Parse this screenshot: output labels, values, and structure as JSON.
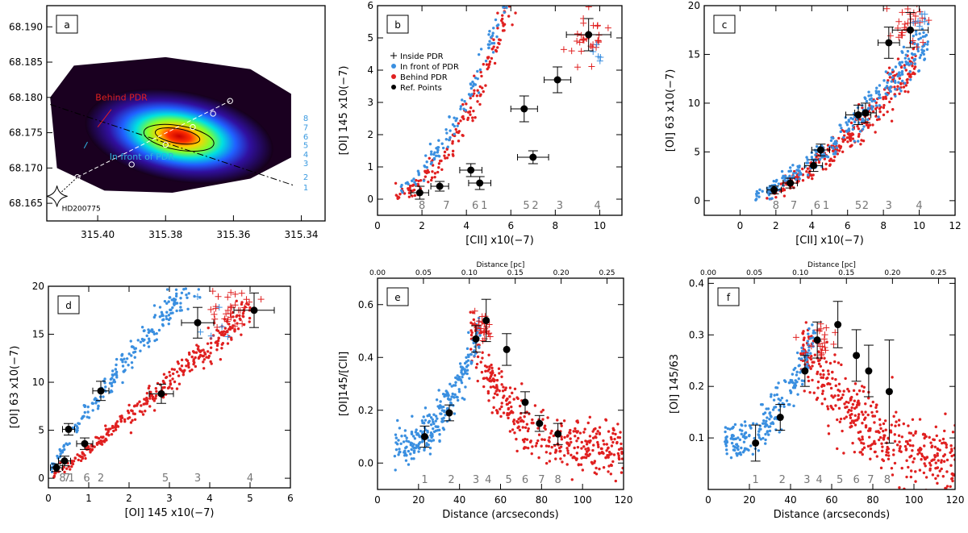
{
  "colors": {
    "infront": "#3a8fe0",
    "behind": "#e02020",
    "ref": "#000000",
    "inside_red": "#e02020",
    "inside_blue": "#3a8fe0",
    "numbers": "#777777",
    "map_numbers": "#3a9ae0"
  },
  "chart_data": [
    {
      "id": "a",
      "type": "heatmap",
      "panel_label": "a",
      "x_ticks": [
        "315.40",
        "315.38",
        "315.36",
        "315.34"
      ],
      "y_ticks": [
        "68.165",
        "68.170",
        "68.175",
        "68.180",
        "68.185",
        "68.190"
      ],
      "xlim": [
        315.415,
        315.333
      ],
      "ylim": [
        68.1625,
        68.193
      ],
      "star_label": "HD200775",
      "annotation_behind": "Behind PDR",
      "annotation_front": "In front of PDR",
      "cut_numbers": [
        "1",
        "2",
        "3",
        "4",
        "5",
        "6",
        "7",
        "8"
      ],
      "emission_peak": [
        315.376,
        68.1745
      ],
      "cut_points": [
        [
          315.406,
          68.1687
        ],
        [
          315.39,
          68.1705
        ],
        [
          315.38,
          68.1733
        ],
        [
          315.372,
          68.1758
        ],
        [
          315.366,
          68.1777
        ],
        [
          315.361,
          68.1795
        ]
      ]
    },
    {
      "id": "b",
      "type": "scatter",
      "panel_label": "b",
      "xlabel": "[CII] x10(−7)",
      "ylabel": "[OI] 145 x10(−7)",
      "xlim": [
        0,
        11
      ],
      "ylim": [
        -0.5,
        6
      ],
      "xticks": [
        0,
        2,
        4,
        6,
        8,
        10
      ],
      "yticks": [
        0,
        1,
        2,
        3,
        4,
        5,
        6
      ],
      "legend": {
        "placement": "top-left",
        "entries": [
          "Inside PDR",
          "In front of PDR",
          "Behind PDR",
          "Ref. Points"
        ]
      },
      "point_numbers": [
        {
          "t": "8",
          "x": 2.0
        },
        {
          "t": "7",
          "x": 3.1
        },
        {
          "t": "6",
          "x": 4.4
        },
        {
          "t": "1",
          "x": 4.8
        },
        {
          "t": "5",
          "x": 6.7
        },
        {
          "t": "2",
          "x": 7.1
        },
        {
          "t": "3",
          "x": 8.2
        },
        {
          "t": "4",
          "x": 9.9
        }
      ],
      "ref_points": [
        [
          1.9,
          0.2,
          0.4,
          0.2
        ],
        [
          2.8,
          0.4,
          0.4,
          0.15
        ],
        [
          4.2,
          0.9,
          0.5,
          0.2
        ],
        [
          4.6,
          0.5,
          0.5,
          0.2
        ],
        [
          6.6,
          2.8,
          0.6,
          0.4
        ],
        [
          7.0,
          1.3,
          0.7,
          0.2
        ],
        [
          8.1,
          3.7,
          0.6,
          0.4
        ],
        [
          9.5,
          5.1,
          1.0,
          0.5
        ]
      ],
      "clouds": {
        "blue": {
          "n": 230,
          "xr": [
            1.0,
            10.3
          ],
          "a": 0.0,
          "b": 0.22,
          "p": 1.9,
          "sd": 0.35,
          "yl": 0.0
        },
        "red": {
          "n": 330,
          "xr": [
            0.8,
            10.0
          ],
          "a": 0.0,
          "b": 0.12,
          "p": 2.2,
          "sd": 0.4,
          "yl": 0.0
        },
        "plus_red": {
          "n": 30,
          "cx": 9.4,
          "cy": 5.0,
          "sx": 0.4,
          "sy": 0.4
        },
        "plus_blue": {
          "n": 5,
          "cx": 9.9,
          "cy": 4.6,
          "sx": 0.2,
          "sy": 0.2
        }
      }
    },
    {
      "id": "c",
      "type": "scatter",
      "panel_label": "c",
      "xlabel": "[CII] x10(−7)",
      "ylabel": "[OI] 63 x10(−7)",
      "xlim": [
        -2,
        12
      ],
      "ylim": [
        -1.5,
        20
      ],
      "xticks": [
        0,
        2,
        4,
        6,
        8,
        10,
        12
      ],
      "yticks": [
        0,
        5,
        10,
        15,
        20
      ],
      "point_numbers": [
        {
          "t": "8",
          "x": 2.0
        },
        {
          "t": "7",
          "x": 3.0
        },
        {
          "t": "6",
          "x": 4.3
        },
        {
          "t": "1",
          "x": 4.8
        },
        {
          "t": "5",
          "x": 6.6
        },
        {
          "t": "2",
          "x": 7.0
        },
        {
          "t": "3",
          "x": 8.3
        },
        {
          "t": "4",
          "x": 10.0
        }
      ],
      "ref_points": [
        [
          1.9,
          1.1,
          0.4,
          0.4
        ],
        [
          2.8,
          1.8,
          0.4,
          0.5
        ],
        [
          4.1,
          3.6,
          0.5,
          0.6
        ],
        [
          4.5,
          5.2,
          0.5,
          0.6
        ],
        [
          6.6,
          8.8,
          0.7,
          1.0
        ],
        [
          7.0,
          9.0,
          0.6,
          1.0
        ],
        [
          8.3,
          16.2,
          0.6,
          1.6
        ],
        [
          9.5,
          17.5,
          1.0,
          1.8
        ]
      ],
      "clouds": {
        "blue": {
          "n": 300,
          "xr": [
            0.8,
            10.5
          ],
          "a": 0.0,
          "b": 0.55,
          "p": 1.45,
          "sd": 0.9,
          "yl": 0.0
        },
        "red": {
          "n": 300,
          "xr": [
            1.5,
            9.8
          ],
          "a": 0.0,
          "b": 0.35,
          "p": 1.62,
          "sd": 0.9,
          "yl": 0.0
        },
        "plus_red": {
          "n": 30,
          "cx": 9.5,
          "cy": 18.0,
          "sx": 0.5,
          "sy": 1.0
        },
        "plus_blue": {
          "n": 6,
          "cx": 10.0,
          "cy": 18.5,
          "sx": 0.3,
          "sy": 0.6
        }
      }
    },
    {
      "id": "d",
      "type": "scatter",
      "panel_label": "d",
      "xlabel": "[OI] 145 x10(−7)",
      "ylabel": "[OI] 63 x10(−7)",
      "xlim": [
        0,
        6
      ],
      "ylim": [
        -1,
        20
      ],
      "xticks": [
        0,
        1,
        2,
        3,
        4,
        5,
        6
      ],
      "yticks": [
        0,
        5,
        10,
        15,
        20
      ],
      "point_numbers": [
        {
          "t": "8",
          "x": 0.35
        },
        {
          "t": "7",
          "x": 0.46
        },
        {
          "t": "1",
          "x": 0.57
        },
        {
          "t": "6",
          "x": 0.95
        },
        {
          "t": "2",
          "x": 1.3
        },
        {
          "t": "5",
          "x": 2.9
        },
        {
          "t": "3",
          "x": 3.7
        },
        {
          "t": "4",
          "x": 5.0
        }
      ],
      "ref_points": [
        [
          0.2,
          1.1,
          0.15,
          0.4
        ],
        [
          0.4,
          1.8,
          0.15,
          0.5
        ],
        [
          0.5,
          5.1,
          0.15,
          0.6
        ],
        [
          0.9,
          3.6,
          0.2,
          0.6
        ],
        [
          1.3,
          9.1,
          0.2,
          1.0
        ],
        [
          2.8,
          8.8,
          0.3,
          1.0
        ],
        [
          3.7,
          16.2,
          0.4,
          1.6
        ],
        [
          5.1,
          17.5,
          0.5,
          1.8
        ]
      ],
      "clouds": {
        "blue": {
          "n": 260,
          "xr": [
            0.05,
            4.0
          ],
          "a": 0.0,
          "b": 7.2,
          "p": 0.82,
          "sd": 0.8,
          "yl": 0.0
        },
        "red": {
          "n": 330,
          "xr": [
            0.1,
            5.0
          ],
          "a": 0.0,
          "b": 3.0,
          "p": 1.1,
          "sd": 0.7,
          "yl": 0.0
        },
        "plus_red": {
          "n": 30,
          "cx": 4.5,
          "cy": 17.8,
          "sx": 0.35,
          "sy": 1.0
        },
        "plus_blue": {
          "n": 6,
          "cx": 4.3,
          "cy": 17.0,
          "sx": 0.2,
          "sy": 1.5
        }
      }
    },
    {
      "id": "e",
      "type": "scatter",
      "panel_label": "e",
      "xlabel": "Distance (arcseconds)",
      "ylabel": "[OI]145/[CII]",
      "top_label": "Distance [pc]",
      "top_ticks": [
        "0.00",
        "0.05",
        "0.10",
        "0.15",
        "0.20",
        "0.25"
      ],
      "top_max": 0.268,
      "xlim": [
        0,
        120
      ],
      "ylim": [
        -0.1,
        0.7
      ],
      "xticks": [
        0,
        20,
        40,
        60,
        80,
        100,
        120
      ],
      "yticks": [
        0.0,
        0.2,
        0.4,
        0.6
      ],
      "point_numbers": [
        {
          "t": "1",
          "x": 23
        },
        {
          "t": "2",
          "x": 36
        },
        {
          "t": "3",
          "x": 48
        },
        {
          "t": "4",
          "x": 54
        },
        {
          "t": "5",
          "x": 64
        },
        {
          "t": "6",
          "x": 72
        },
        {
          "t": "7",
          "x": 80
        },
        {
          "t": "8",
          "x": 88
        }
      ],
      "ref_points": [
        [
          23,
          0.1,
          0,
          0.04
        ],
        [
          35,
          0.19,
          0,
          0.03
        ],
        [
          48,
          0.47,
          0,
          0.05
        ],
        [
          53,
          0.54,
          0,
          0.08
        ],
        [
          63,
          0.43,
          0,
          0.06
        ],
        [
          72,
          0.23,
          0,
          0.04
        ],
        [
          79,
          0.15,
          0,
          0.03
        ],
        [
          88,
          0.11,
          0,
          0.04
        ]
      ],
      "profile": {
        "blue": {
          "n": 260,
          "xr": [
            8,
            50
          ],
          "y0": 0.06,
          "y1": 0.5,
          "sd": 0.04
        },
        "red": {
          "n": 380,
          "xr": [
            45,
            120
          ],
          "peak": 0.52,
          "floor": 0.04,
          "sd": 0.05
        },
        "plus_red": {
          "n": 25,
          "cx": 51,
          "cy": 0.51,
          "sx": 2.5,
          "sy": 0.03
        }
      }
    },
    {
      "id": "f",
      "type": "scatter",
      "panel_label": "f",
      "xlabel": "Distance (arcseconds)",
      "ylabel": "[OI] 145/63",
      "top_label": "Distance [pc]",
      "top_ticks": [
        "0.00",
        "0.05",
        "0.10",
        "0.15",
        "0.20",
        "0.25"
      ],
      "top_max": 0.268,
      "xlim": [
        0,
        120
      ],
      "ylim": [
        0.0,
        0.41
      ],
      "xticks": [
        0,
        20,
        40,
        60,
        80,
        100,
        120
      ],
      "yticks": [
        0.1,
        0.2,
        0.3,
        0.4
      ],
      "point_numbers": [
        {
          "t": "1",
          "x": 23
        },
        {
          "t": "2",
          "x": 36
        },
        {
          "t": "3",
          "x": 48
        },
        {
          "t": "4",
          "x": 54
        },
        {
          "t": "5",
          "x": 64
        },
        {
          "t": "6",
          "x": 72
        },
        {
          "t": "7",
          "x": 79
        },
        {
          "t": "8",
          "x": 87
        }
      ],
      "ref_points": [
        [
          23,
          0.09,
          0,
          0.035
        ],
        [
          35,
          0.14,
          0,
          0.025
        ],
        [
          47,
          0.23,
          0,
          0.03
        ],
        [
          53,
          0.29,
          0,
          0.035
        ],
        [
          63,
          0.32,
          0,
          0.045
        ],
        [
          72,
          0.26,
          0,
          0.05
        ],
        [
          78,
          0.23,
          0,
          0.05
        ],
        [
          88,
          0.19,
          0,
          0.1
        ]
      ],
      "profile": {
        "blue": {
          "n": 230,
          "xr": [
            8,
            52
          ],
          "y0": 0.09,
          "y1": 0.3,
          "sd": 0.02
        },
        "red": {
          "n": 440,
          "xr": [
            45,
            120
          ],
          "peak": 0.28,
          "floor": 0.02,
          "sd": 0.035
        },
        "plus_red": {
          "n": 22,
          "cx": 55,
          "cy": 0.29,
          "sx": 4,
          "sy": 0.02
        }
      }
    }
  ]
}
